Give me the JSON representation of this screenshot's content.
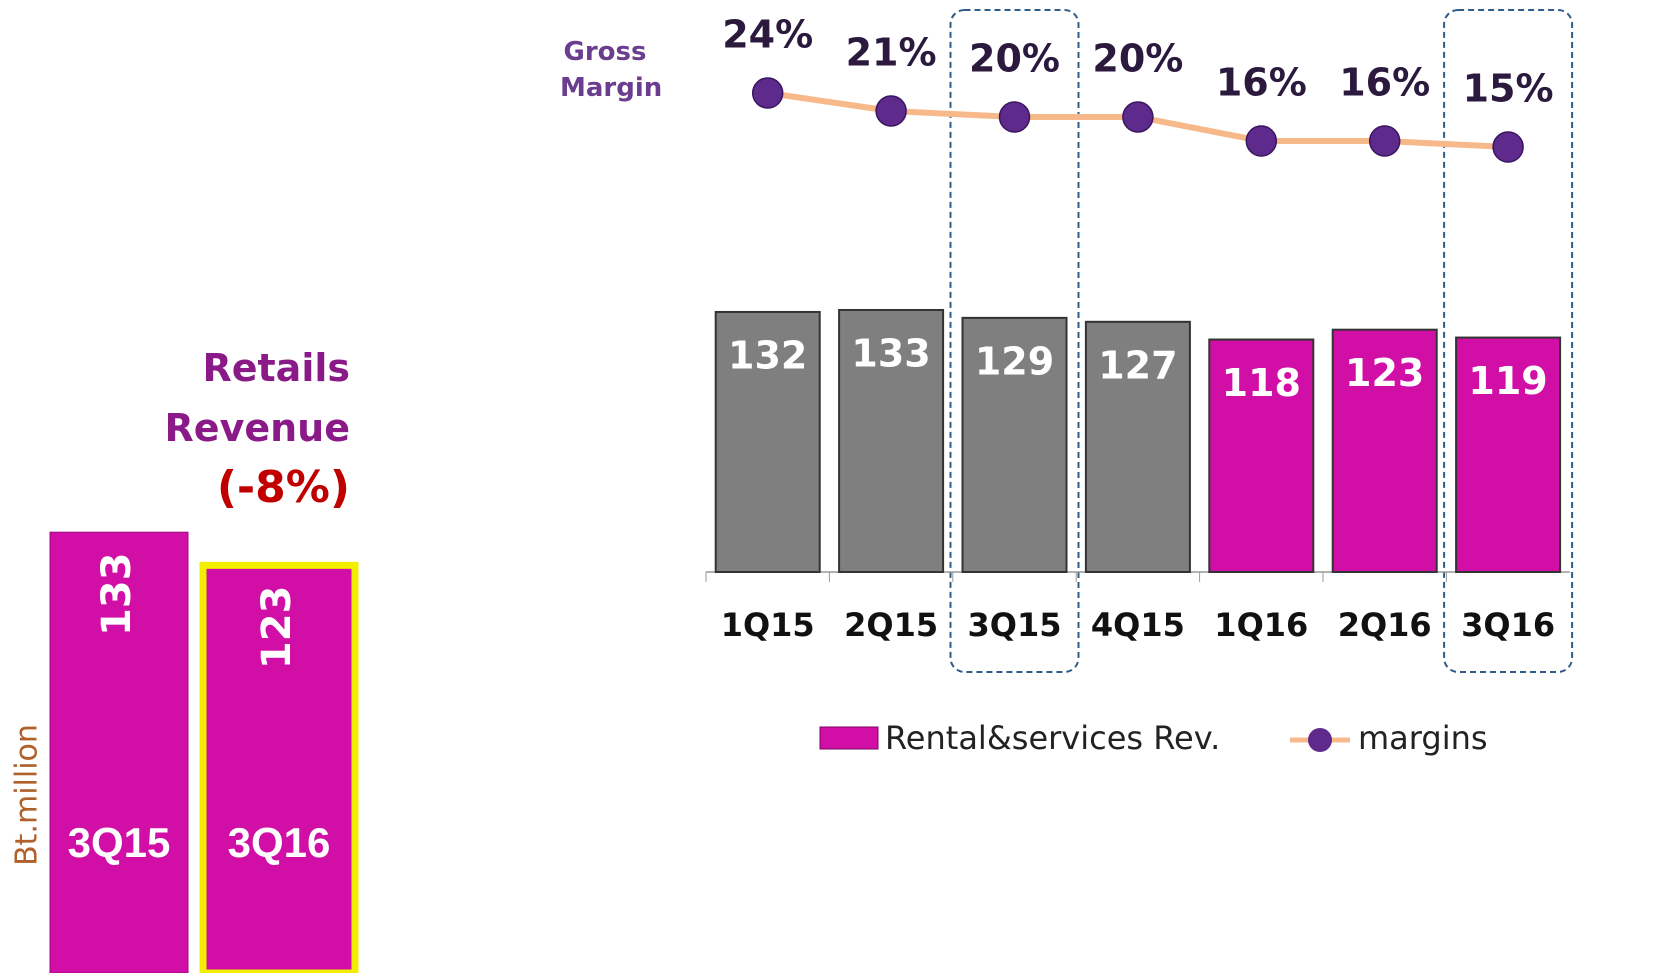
{
  "chart_data": [
    {
      "type": "bar",
      "title": "Retails Revenue",
      "subtitle": "(-8%)",
      "ylabel": "Bt.million",
      "categories": [
        "3Q15",
        "3Q16"
      ],
      "values": [
        133,
        123
      ],
      "color": "#d10fa6",
      "border_colors": [
        null,
        "#f2ee00"
      ],
      "ylim": [
        0,
        140
      ]
    },
    {
      "type": "bar_line",
      "y2label": "Gross Margin",
      "categories": [
        "1Q15",
        "2Q15",
        "3Q15",
        "4Q15",
        "1Q16",
        "2Q16",
        "3Q16"
      ],
      "series": [
        {
          "name": "Rental&services Rev.",
          "color": "#d10fa6",
          "bar_colors": [
            "#7f7f7f",
            "#7f7f7f",
            "#7f7f7f",
            "#7f7f7f",
            "#d10fa6",
            "#d10fa6",
            "#d10fa6"
          ],
          "values": [
            132,
            133,
            129,
            127,
            118,
            123,
            119
          ]
        },
        {
          "name": "margins",
          "axis": "y2",
          "color": "#f7b98a",
          "marker_color": "#5e2a8c",
          "values": [
            24,
            21,
            20,
            20,
            16,
            16,
            15
          ],
          "value_labels": [
            "24%",
            "21%",
            "20%",
            "20%",
            "16%",
            "16%",
            "15%"
          ]
        }
      ],
      "ylim": [
        0,
        200
      ],
      "y2lim": [
        0,
        30
      ],
      "highlighted_categories": [
        2,
        6
      ]
    }
  ]
}
